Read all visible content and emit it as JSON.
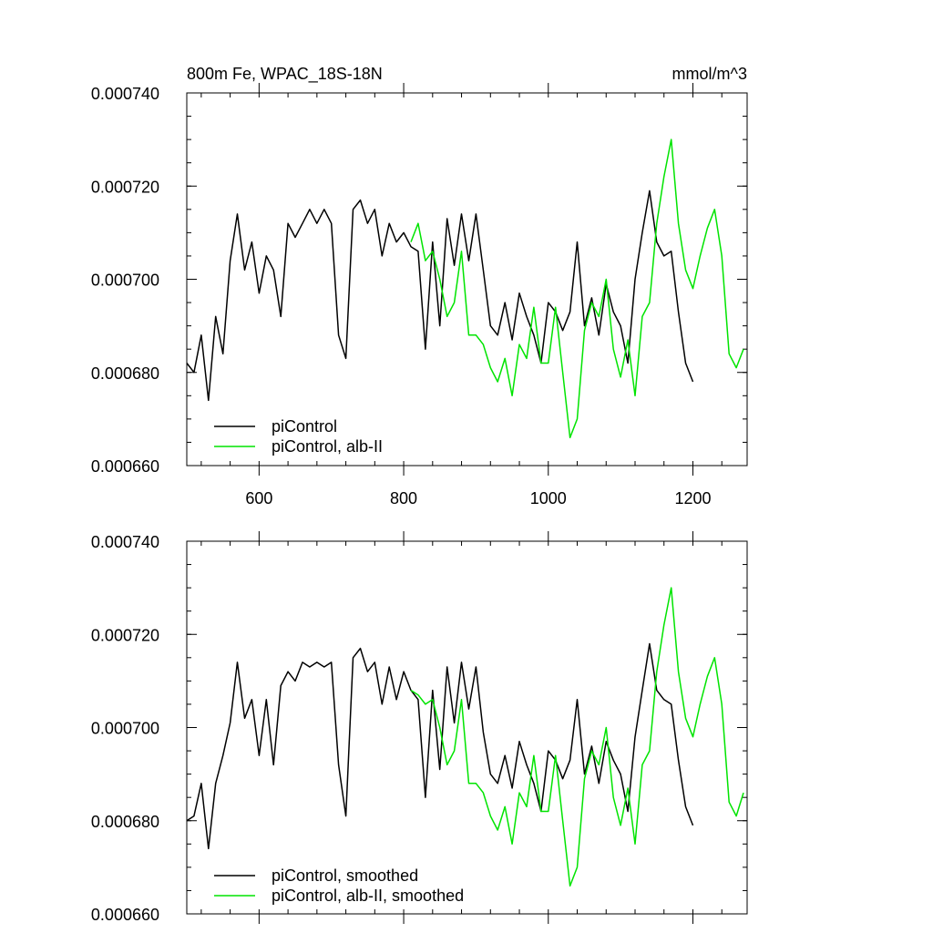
{
  "chart_data": [
    {
      "type": "line",
      "title": "800m Fe, WPAC_18S-18N",
      "units": "mmol/m^3",
      "xlim": [
        500,
        1275
      ],
      "ylim": [
        0.00066,
        0.00074
      ],
      "xticks": [
        600,
        800,
        1000,
        1200
      ],
      "xtick_labels": [
        "600",
        "800",
        "1000",
        "1200"
      ],
      "yticks": [
        0.00066,
        0.00068,
        0.0007,
        0.00072,
        0.00074
      ],
      "ytick_labels": [
        "0.000660",
        "0.000680",
        "0.000700",
        "0.000720",
        "0.000740"
      ],
      "legend_position": "bottom-left",
      "series": [
        {
          "name": "piControl",
          "color": "#000000",
          "x": [
            500,
            510,
            520,
            530,
            540,
            550,
            560,
            570,
            580,
            590,
            600,
            610,
            620,
            630,
            640,
            650,
            660,
            670,
            680,
            690,
            700,
            710,
            720,
            730,
            740,
            750,
            760,
            770,
            780,
            790,
            800,
            810,
            820,
            830,
            840,
            850,
            860,
            870,
            880,
            890,
            900,
            910,
            920,
            930,
            940,
            950,
            960,
            970,
            980,
            990,
            1000,
            1010,
            1020,
            1030,
            1040,
            1050,
            1060,
            1070,
            1080,
            1090,
            1100,
            1110,
            1120,
            1130,
            1140,
            1150,
            1160,
            1170,
            1180,
            1190,
            1200
          ],
          "y": [
            0.000682,
            0.00068,
            0.000688,
            0.000674,
            0.000692,
            0.000684,
            0.000704,
            0.000714,
            0.000702,
            0.000708,
            0.000697,
            0.000705,
            0.000702,
            0.000692,
            0.000712,
            0.000709,
            0.000712,
            0.000715,
            0.000712,
            0.000715,
            0.000712,
            0.000688,
            0.000683,
            0.000715,
            0.000717,
            0.000712,
            0.000715,
            0.000705,
            0.000712,
            0.000708,
            0.00071,
            0.000707,
            0.000706,
            0.000685,
            0.000708,
            0.00069,
            0.000713,
            0.000703,
            0.000714,
            0.000704,
            0.000714,
            0.000702,
            0.00069,
            0.000688,
            0.000695,
            0.000687,
            0.000697,
            0.000692,
            0.000688,
            0.000682,
            0.000695,
            0.000693,
            0.000689,
            0.000693,
            0.000708,
            0.00069,
            0.000696,
            0.000688,
            0.000699,
            0.000693,
            0.00069,
            0.000682,
            0.0007,
            0.00071,
            0.000719,
            0.000708,
            0.000705,
            0.000706,
            0.000693,
            0.000682,
            0.000678
          ]
        },
        {
          "name": "piControl, alb-II",
          "color": "#00e400",
          "x": [
            810,
            820,
            830,
            840,
            850,
            860,
            870,
            880,
            890,
            900,
            910,
            920,
            930,
            940,
            950,
            960,
            970,
            980,
            990,
            1000,
            1010,
            1020,
            1030,
            1040,
            1050,
            1060,
            1070,
            1080,
            1090,
            1100,
            1110,
            1120,
            1130,
            1140,
            1150,
            1160,
            1170,
            1180,
            1190,
            1200,
            1210,
            1220,
            1230,
            1240,
            1250,
            1260,
            1270
          ],
          "y": [
            0.000708,
            0.000712,
            0.000704,
            0.000706,
            0.0007,
            0.000692,
            0.000695,
            0.000706,
            0.000688,
            0.000688,
            0.000686,
            0.000681,
            0.000678,
            0.000683,
            0.000675,
            0.000686,
            0.000683,
            0.000694,
            0.000682,
            0.000682,
            0.000694,
            0.00068,
            0.000666,
            0.00067,
            0.000689,
            0.000695,
            0.000692,
            0.0007,
            0.000685,
            0.000679,
            0.000687,
            0.000675,
            0.000692,
            0.000695,
            0.000712,
            0.000722,
            0.00073,
            0.000712,
            0.000702,
            0.000698,
            0.000705,
            0.000711,
            0.000715,
            0.000705,
            0.000684,
            0.000681,
            0.000685
          ]
        }
      ]
    },
    {
      "type": "line",
      "title": "",
      "xlim": [
        500,
        1275
      ],
      "ylim": [
        0.00066,
        0.00074
      ],
      "xticks": [
        600,
        800,
        1000,
        1200
      ],
      "yticks": [
        0.00066,
        0.00068,
        0.0007,
        0.00072,
        0.00074
      ],
      "ytick_labels": [
        "0.000660",
        "0.000680",
        "0.000700",
        "0.000720",
        "0.000740"
      ],
      "legend_position": "bottom-left",
      "series": [
        {
          "name": "piControl, smoothed",
          "color": "#000000",
          "x": [
            500,
            510,
            520,
            530,
            540,
            550,
            560,
            570,
            580,
            590,
            600,
            610,
            620,
            630,
            640,
            650,
            660,
            670,
            680,
            690,
            700,
            710,
            720,
            730,
            740,
            750,
            760,
            770,
            780,
            790,
            800,
            810,
            820,
            830,
            840,
            850,
            860,
            870,
            880,
            890,
            900,
            910,
            920,
            930,
            940,
            950,
            960,
            970,
            980,
            990,
            1000,
            1010,
            1020,
            1030,
            1040,
            1050,
            1060,
            1070,
            1080,
            1090,
            1100,
            1110,
            1120,
            1130,
            1140,
            1150,
            1160,
            1170,
            1180,
            1190,
            1200
          ],
          "y": [
            0.00068,
            0.000681,
            0.000688,
            0.000674,
            0.000688,
            0.000694,
            0.000701,
            0.000714,
            0.000702,
            0.000706,
            0.000694,
            0.000706,
            0.000692,
            0.000709,
            0.000712,
            0.00071,
            0.000714,
            0.000713,
            0.000714,
            0.000713,
            0.000714,
            0.000692,
            0.000681,
            0.000715,
            0.000717,
            0.000712,
            0.000714,
            0.000705,
            0.000713,
            0.000706,
            0.000712,
            0.000708,
            0.000706,
            0.000685,
            0.000708,
            0.000691,
            0.000713,
            0.000701,
            0.000714,
            0.000704,
            0.000713,
            0.000699,
            0.00069,
            0.000688,
            0.000694,
            0.000687,
            0.000697,
            0.000692,
            0.000688,
            0.000682,
            0.000695,
            0.000693,
            0.000689,
            0.000693,
            0.000706,
            0.00069,
            0.000696,
            0.000688,
            0.000697,
            0.000693,
            0.00069,
            0.000682,
            0.000698,
            0.000708,
            0.000718,
            0.000708,
            0.000706,
            0.000705,
            0.000693,
            0.000683,
            0.000679
          ]
        },
        {
          "name": "piControl, alb-II, smoothed",
          "color": "#00e400",
          "x": [
            810,
            820,
            830,
            840,
            850,
            860,
            870,
            880,
            890,
            900,
            910,
            920,
            930,
            940,
            950,
            960,
            970,
            980,
            990,
            1000,
            1010,
            1020,
            1030,
            1040,
            1050,
            1060,
            1070,
            1080,
            1090,
            1100,
            1110,
            1120,
            1130,
            1140,
            1150,
            1160,
            1170,
            1180,
            1190,
            1200,
            1210,
            1220,
            1230,
            1240,
            1250,
            1260,
            1270
          ],
          "y": [
            0.000708,
            0.000707,
            0.000705,
            0.000706,
            0.0007,
            0.000692,
            0.000695,
            0.000706,
            0.000688,
            0.000688,
            0.000686,
            0.000681,
            0.000678,
            0.000683,
            0.000675,
            0.000686,
            0.000683,
            0.000694,
            0.000682,
            0.000682,
            0.000694,
            0.00068,
            0.000666,
            0.00067,
            0.000689,
            0.000695,
            0.000692,
            0.0007,
            0.000685,
            0.000679,
            0.000687,
            0.000675,
            0.000692,
            0.000695,
            0.000712,
            0.000722,
            0.00073,
            0.000712,
            0.000702,
            0.000698,
            0.000705,
            0.000711,
            0.000715,
            0.000705,
            0.000684,
            0.000681,
            0.000686
          ]
        }
      ]
    }
  ]
}
